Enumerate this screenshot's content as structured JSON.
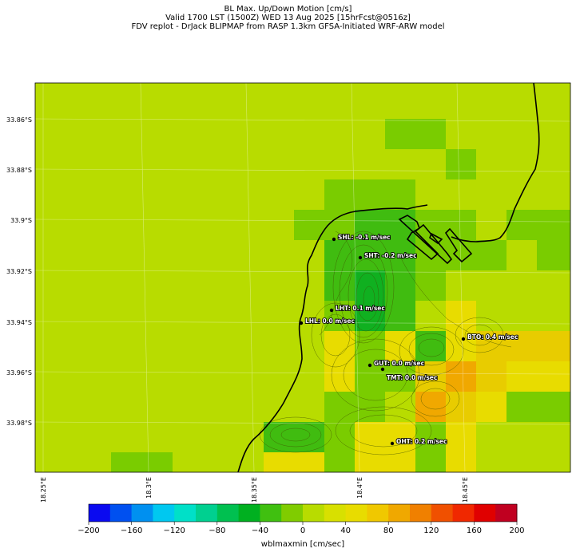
{
  "title": {
    "line1": "BL Max. Up/Down Motion [cm/s]",
    "line2": "Valid 1700 LST (1500Z) WED 13 Aug 2025 [15hrFcst@0516z]",
    "line3": "FDV replot - DrJack BLIPMAP from RASP 1.3km GFSA-Initiated WRF-ARW model"
  },
  "lat_labels": [
    "33.86°S",
    "33.88°S",
    "33.9°S",
    "33.92°S",
    "33.94°S",
    "33.96°S",
    "33.98°S"
  ],
  "lon_labels": [
    "18.25°E",
    "18.3°E",
    "18.35°E",
    "18.4°E",
    "18.45°E"
  ],
  "sites": [
    {
      "code": "SHL",
      "label": "SHL: -0.1 m/sec"
    },
    {
      "code": "SHT",
      "label": "SHT: -0.2 m/sec"
    },
    {
      "code": "LHT",
      "label": "LHT: 0.1 m/sec"
    },
    {
      "code": "LHL",
      "label": "LHL: 0.0 m/sec"
    },
    {
      "code": "BTO",
      "label": "BTO: 0.4 m/sec"
    },
    {
      "code": "GUT",
      "label": "GUT: 0.0 m/sec"
    },
    {
      "code": "TMT",
      "label": "TMT: 0.0 m/sec"
    },
    {
      "code": "OHT",
      "label": "OHT: 0.2 m/sec"
    }
  ],
  "colorbar": {
    "label": "wblmaxmin [cm/sec]",
    "ticks": [
      "−200",
      "−160",
      "−120",
      "−80",
      "−40",
      "0",
      "40",
      "80",
      "120",
      "160",
      "200"
    ],
    "colors": [
      "#0a0af0",
      "#0050f0",
      "#0090f0",
      "#00c8f0",
      "#00e0c8",
      "#00d090",
      "#00c050",
      "#00b020",
      "#40c010",
      "#80cc00",
      "#b8dc00",
      "#d8e000",
      "#e8dc00",
      "#f0c800",
      "#f0a800",
      "#f08000",
      "#f05000",
      "#f02800",
      "#e00000",
      "#c00020"
    ]
  },
  "colors": {
    "background": "#b8dc00",
    "coastline": "#000000",
    "contour": "#405000",
    "marker": "#000000"
  }
}
